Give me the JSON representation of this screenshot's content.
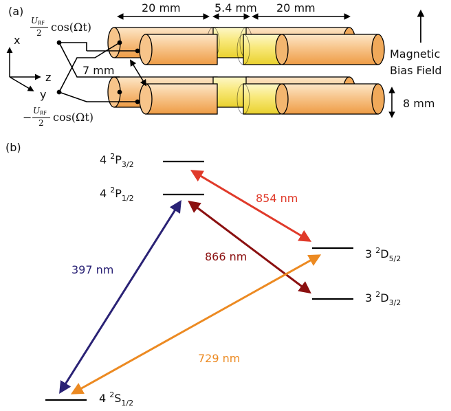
{
  "panel_a": {
    "label": "(a)",
    "dim_left": "20 mm",
    "dim_mid": "5.4 mm",
    "dim_right": "20 mm",
    "dim_gap": "7 mm",
    "dim_diameter": "8 mm",
    "field_line1": "Magnetic",
    "field_line2": "Bias Field",
    "axis_x": "x",
    "axis_y": "y",
    "axis_z": "z",
    "voltage_top": {
      "frac_num": "U",
      "frac_sub": "RF",
      "frac_den": "2",
      "func": "cos(Ωt)"
    },
    "voltage_bottom": {
      "sign": "−",
      "frac_num": "U",
      "frac_sub": "RF",
      "frac_den": "2",
      "func": "cos(Ωt)"
    },
    "colors": {
      "electrode": "#f2b066",
      "electrode_light": "#fde7c8",
      "middle": "#f5e35a",
      "middle_light": "#fdf7c8"
    }
  },
  "panel_b": {
    "label": "(b)",
    "levels": [
      {
        "id": "p32",
        "prefix": "4 ",
        "sup": "2",
        "term": "P",
        "sub": "3/2"
      },
      {
        "id": "p12",
        "prefix": "4 ",
        "sup": "2",
        "term": "P",
        "sub": "1/2"
      },
      {
        "id": "d52",
        "prefix": "3 ",
        "sup": "2",
        "term": "D",
        "sub": "5/2"
      },
      {
        "id": "d32",
        "prefix": "3 ",
        "sup": "2",
        "term": "D",
        "sub": "3/2"
      },
      {
        "id": "s12",
        "prefix": "4 ",
        "sup": "2",
        "term": "S",
        "sub": "1/2"
      }
    ],
    "transitions": [
      {
        "label": "854 nm",
        "color": "#e03a2a"
      },
      {
        "label": "866 nm",
        "color": "#8b1010"
      },
      {
        "label": "397 nm",
        "color": "#2a2275"
      },
      {
        "label": "729 nm",
        "color": "#ec8a22"
      }
    ]
  }
}
